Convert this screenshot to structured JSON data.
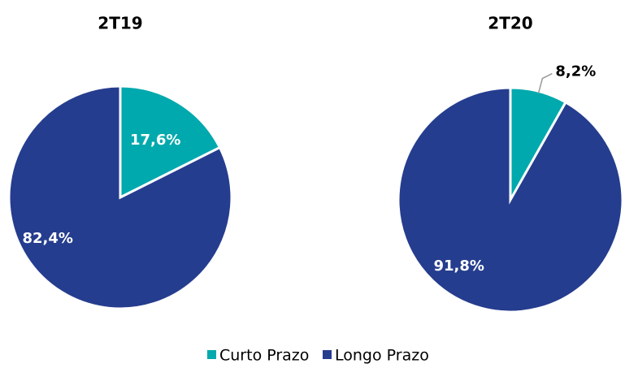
{
  "chart_data": [
    {
      "type": "pie",
      "title": "2T19",
      "categories": [
        "Curto Prazo",
        "Longo Prazo"
      ],
      "values": [
        17.6,
        82.4
      ],
      "value_labels": [
        "17,6%",
        "82,4%"
      ],
      "colors": [
        "#00a9ad",
        "#253d8e"
      ]
    },
    {
      "type": "pie",
      "title": "2T20",
      "categories": [
        "Curto Prazo",
        "Longo Prazo"
      ],
      "values": [
        8.2,
        91.8
      ],
      "value_labels": [
        "8,2%",
        "91,8%"
      ],
      "colors": [
        "#00a9ad",
        "#253d8e"
      ]
    }
  ]
}
